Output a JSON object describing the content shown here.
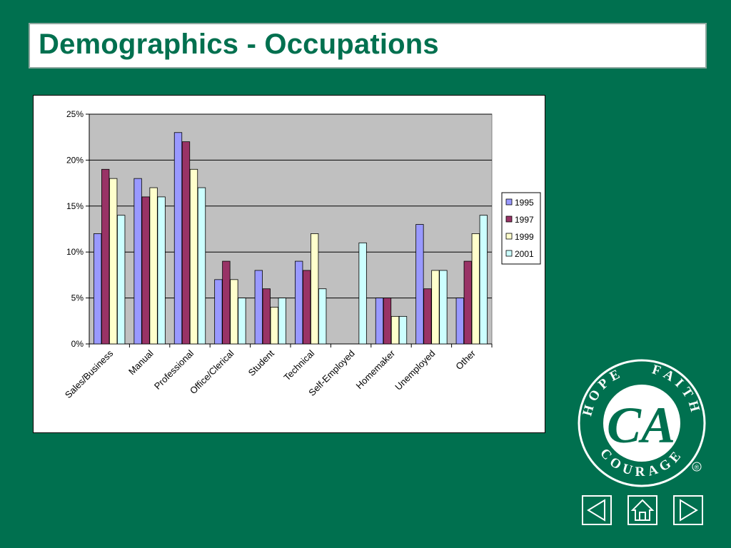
{
  "slide": {
    "title": "Demographics - Occupations"
  },
  "chart_data": {
    "type": "bar",
    "categories": [
      "Sales/Business",
      "Manual",
      "Professional",
      "Office/Clerical",
      "Student",
      "Technical",
      "Self-Employed",
      "Homemaker",
      "Unemployed",
      "Other"
    ],
    "series": [
      {
        "name": "1995",
        "color": "#9999ff",
        "values": [
          12,
          18,
          23,
          7,
          8,
          9,
          0,
          5,
          13,
          5
        ]
      },
      {
        "name": "1997",
        "color": "#993366",
        "values": [
          19,
          16,
          22,
          9,
          6,
          8,
          0,
          5,
          6,
          9
        ]
      },
      {
        "name": "1999",
        "color": "#ffffcc",
        "values": [
          18,
          17,
          19,
          7,
          4,
          12,
          0,
          3,
          8,
          12
        ]
      },
      {
        "name": "2001",
        "color": "#ccffff",
        "values": [
          14,
          16,
          17,
          5,
          5,
          6,
          11,
          3,
          8,
          14
        ]
      }
    ],
    "ylim": [
      0,
      25
    ],
    "yticks": [
      0,
      5,
      10,
      15,
      20,
      25
    ],
    "ytick_labels": [
      "0%",
      "5%",
      "10%",
      "15%",
      "20%",
      "25%"
    ],
    "grid": true,
    "legend_position": "right",
    "plot_background": "#c0c0c0"
  },
  "logo": {
    "top_left": "HOPE",
    "top_right": "FAITH",
    "bottom": "COURAGE",
    "monogram": "CA",
    "registered": "®"
  },
  "nav": {
    "prev_icon": "triangle-left-icon",
    "home_icon": "home-icon",
    "next_icon": "triangle-right-icon"
  }
}
